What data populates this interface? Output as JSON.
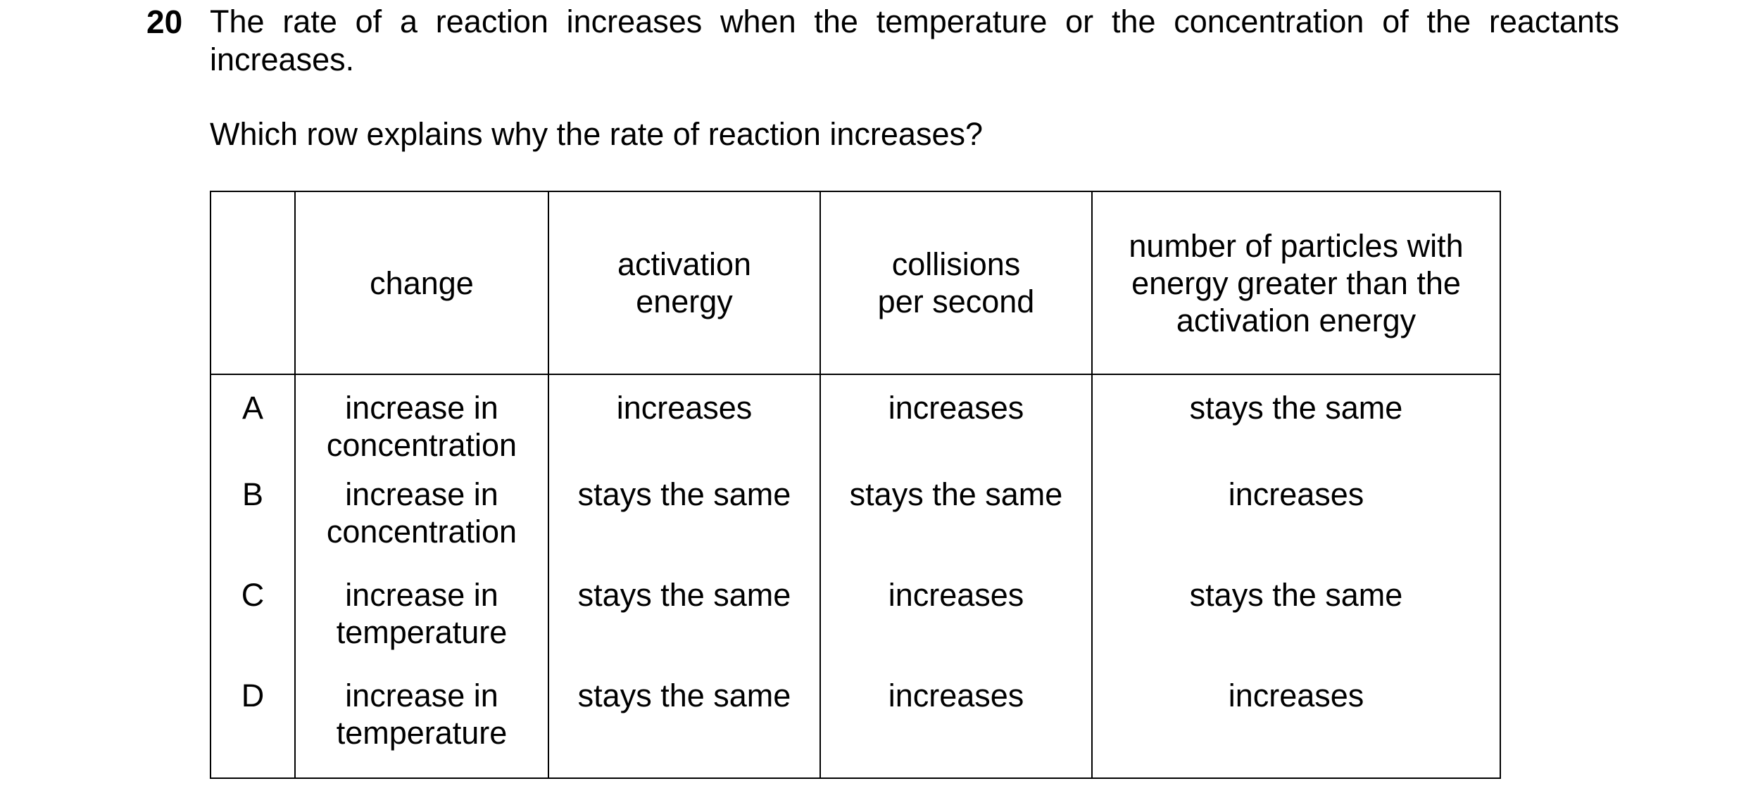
{
  "question": {
    "number": "20",
    "stem": "The rate of a reaction increases when the temperature or the concentration of the reactants increases.",
    "prompt": "Which row explains why the rate of reaction increases?"
  },
  "table": {
    "headers": [
      "",
      "change",
      "activation energy",
      "collisions per second",
      "number of particles with energy greater than the activation energy"
    ],
    "rows": [
      {
        "letter": "A",
        "change": "increase in concentration",
        "activation_energy": "increases",
        "collisions": "increases",
        "particles": "stays the same"
      },
      {
        "letter": "B",
        "change": "increase in concentration",
        "activation_energy": "stays the same",
        "collisions": "stays the same",
        "particles": "increases"
      },
      {
        "letter": "C",
        "change": "increase in temperature",
        "activation_energy": "stays the same",
        "collisions": "increases",
        "particles": "stays the same"
      },
      {
        "letter": "D",
        "change": "increase in temperature",
        "activation_energy": "stays the same",
        "collisions": "increases",
        "particles": "increases"
      }
    ]
  }
}
